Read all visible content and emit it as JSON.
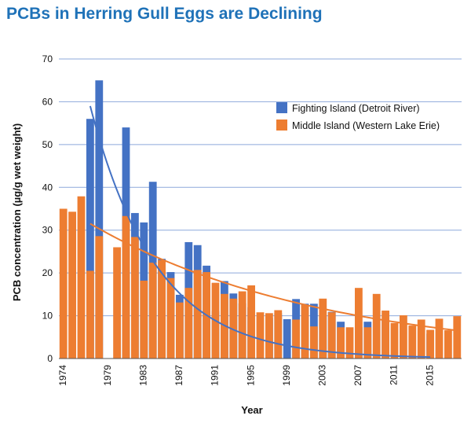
{
  "chart_data": {
    "type": "bar",
    "title": "PCBs in Herring Gull Eggs are Declining",
    "xlabel": "Year",
    "ylabel": "PCB concentration (µg/g wet weight)",
    "ylim": [
      0,
      70
    ],
    "yticks": [
      0,
      10,
      20,
      30,
      40,
      50,
      60,
      70
    ],
    "xticks": [
      1974,
      1979,
      1983,
      1987,
      1991,
      1995,
      1999,
      2003,
      2007,
      2011,
      2015
    ],
    "x": [
      1974,
      1975,
      1976,
      1977,
      1978,
      1979,
      1980,
      1981,
      1982,
      1983,
      1984,
      1985,
      1986,
      1987,
      1988,
      1989,
      1990,
      1991,
      1992,
      1993,
      1994,
      1995,
      1996,
      1997,
      1998,
      1999,
      2000,
      2001,
      2002,
      2003,
      2004,
      2005,
      2006,
      2007,
      2008,
      2009,
      2010,
      2011,
      2012,
      2013,
      2014,
      2015,
      2016,
      2017,
      2018
    ],
    "grid": true,
    "legend_position": "top-right",
    "series": [
      {
        "name": "Fighting Island (Detroit River)",
        "color": "#4472c4",
        "values": [
          null,
          null,
          null,
          56,
          65,
          null,
          null,
          54,
          34,
          31.8,
          41.3,
          23.3,
          20.2,
          14.9,
          27.2,
          26.5,
          21.7,
          11.1,
          18.1,
          15.2,
          12.9,
          12,
          null,
          9.5,
          10.6,
          9.2,
          13.9,
          12.8,
          12.8,
          10.2,
          10.9,
          8.6,
          null,
          7.3,
          8.6,
          null,
          9.1,
          null,
          null,
          null,
          null,
          5.8,
          null,
          null,
          null
        ],
        "trend": {
          "type": "exponential",
          "a": 59,
          "b": -0.1355,
          "x0": 1977,
          "from": 1977,
          "to": 2015
        }
      },
      {
        "name": "Middle Island (Western Lake Erie)",
        "color": "#ed7d31",
        "values": [
          35,
          34.3,
          37.9,
          20.5,
          28.6,
          null,
          26,
          33.3,
          28.4,
          18.2,
          22.4,
          23,
          18.8,
          13.1,
          16.5,
          20.7,
          20.2,
          17.7,
          15.1,
          14,
          15.7,
          17.1,
          10.8,
          10.6,
          11.3,
          null,
          9.1,
          12.5,
          7.5,
          14,
          10.8,
          7.3,
          7.3,
          16.5,
          7.3,
          15.1,
          11.2,
          8.3,
          10.1,
          7.7,
          9.1,
          6.7,
          9.3,
          6.6,
          9.9
        ],
        "trend": {
          "type": "exponential",
          "a": 31.5,
          "b": -0.0383,
          "x0": 1977,
          "from": 1977,
          "to": 2018
        }
      }
    ]
  }
}
